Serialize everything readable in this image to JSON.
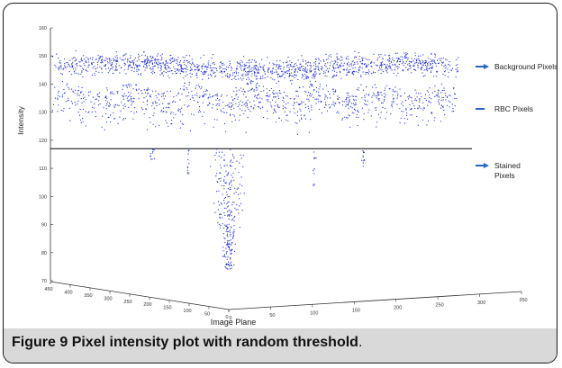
{
  "figure": {
    "label": "Figure 9",
    "caption": "Pixel intensity plot with random threshold",
    "caption_end": "."
  },
  "chart_data": {
    "type": "scatter",
    "projection": "3d",
    "title": "",
    "zlabel": "Intensity",
    "xlabel": "Image Plane",
    "z_ticks": [
      "70",
      "80",
      "90",
      "100",
      "110",
      "120",
      "130",
      "140",
      "150",
      "160"
    ],
    "zlim": [
      70,
      160
    ],
    "x_ticks": [
      "0",
      "50",
      "100",
      "150",
      "200",
      "250",
      "300",
      "350"
    ],
    "xlim": [
      0,
      350
    ],
    "y_ticks": [
      "0",
      "50",
      "100",
      "150",
      "200",
      "250",
      "300",
      "350",
      "400",
      "450"
    ],
    "ylim": [
      0,
      450
    ],
    "threshold": 117,
    "series_color": "#1f2fd0",
    "threshold_color": "#000000",
    "clusters": [
      {
        "name": "background",
        "intensity_range": [
          140,
          156
        ],
        "density": "very high"
      },
      {
        "name": "rbc",
        "intensity_range": [
          118,
          140
        ],
        "density": "high"
      },
      {
        "name": "stained",
        "intensity_range": [
          73,
          117
        ],
        "density": "low"
      }
    ],
    "legend": [
      {
        "label": "Background Pixels",
        "marker": "arrow"
      },
      {
        "label": "RBC Pixels",
        "marker": "dash"
      },
      {
        "label": "Stained\nPixels",
        "marker": "arrow"
      }
    ],
    "legend_position": "right"
  }
}
